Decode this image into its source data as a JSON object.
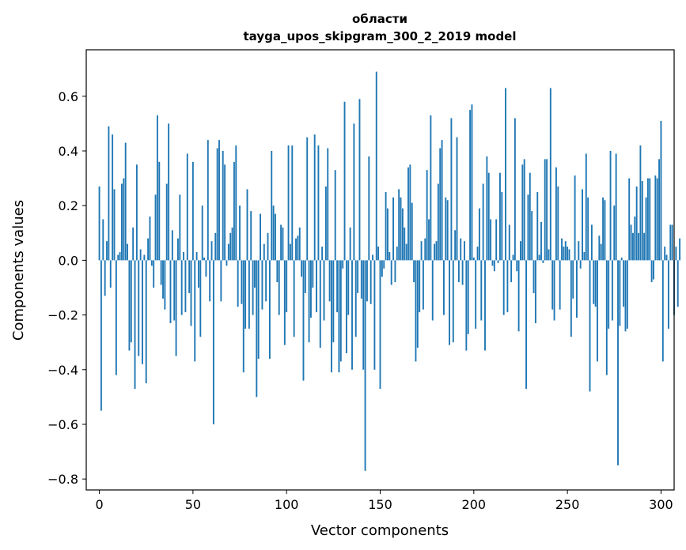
{
  "chart_data": {
    "type": "bar",
    "title_line1": "области",
    "title_line2": "tayga_upos_skipgram_300_2_2019 model",
    "xlabel": "Vector components",
    "ylabel": "Components values",
    "xlim": [
      -7,
      307
    ],
    "ylim": [
      -0.84,
      0.77
    ],
    "xticks": [
      0,
      50,
      100,
      150,
      200,
      250,
      300
    ],
    "xtick_labels": [
      "0",
      "50",
      "100",
      "150",
      "200",
      "250",
      "300"
    ],
    "yticks": [
      -0.8,
      -0.6,
      -0.4,
      -0.2,
      0.0,
      0.2,
      0.4,
      0.6
    ],
    "ytick_labels": [
      "−0.8",
      "−0.6",
      "−0.4",
      "−0.2",
      "0.0",
      "0.2",
      "0.4",
      "0.6"
    ],
    "bar_color": "#1f77b4",
    "grid": false,
    "values": [
      0.27,
      -0.55,
      0.15,
      -0.13,
      0.07,
      0.49,
      -0.1,
      0.46,
      0.26,
      -0.42,
      0.02,
      0.03,
      0.28,
      0.3,
      0.43,
      0.06,
      -0.33,
      -0.3,
      0.12,
      -0.47,
      0.35,
      -0.35,
      0.04,
      -0.38,
      0.02,
      -0.45,
      0.08,
      0.16,
      -0.02,
      -0.1,
      0.24,
      0.53,
      0.36,
      -0.09,
      -0.14,
      -0.18,
      0.28,
      0.5,
      -0.23,
      0.11,
      -0.22,
      -0.35,
      0.08,
      0.24,
      -0.2,
      0.03,
      -0.19,
      0.39,
      -0.12,
      -0.24,
      0.36,
      -0.37,
      0.03,
      -0.1,
      -0.28,
      0.2,
      0.01,
      -0.06,
      0.44,
      -0.15,
      0.07,
      -0.6,
      0.1,
      0.41,
      0.44,
      -0.15,
      0.4,
      0.35,
      -0.02,
      0.06,
      0.1,
      0.12,
      0.36,
      0.42,
      -0.17,
      0.2,
      -0.16,
      -0.41,
      -0.25,
      0.26,
      -0.25,
      0.18,
      -0.2,
      -0.1,
      -0.5,
      -0.36,
      0.17,
      -0.18,
      0.06,
      -0.15,
      0.1,
      -0.36,
      0.4,
      0.2,
      0.17,
      -0.08,
      -0.2,
      0.13,
      0.12,
      -0.31,
      -0.19,
      0.42,
      0.06,
      0.42,
      -0.28,
      0.08,
      0.09,
      0.12,
      -0.06,
      -0.44,
      -0.12,
      0.45,
      -0.3,
      -0.21,
      -0.1,
      0.46,
      -0.19,
      0.42,
      -0.32,
      0.05,
      -0.22,
      0.27,
      0.41,
      -0.15,
      -0.41,
      -0.3,
      0.33,
      -0.19,
      -0.41,
      -0.37,
      -0.03,
      0.58,
      -0.34,
      -0.2,
      0.12,
      -0.4,
      0.5,
      -0.28,
      -0.12,
      0.59,
      -0.14,
      -0.4,
      -0.77,
      -0.15,
      0.38,
      -0.16,
      0.02,
      -0.4,
      0.69,
      0.05,
      -0.47,
      -0.06,
      -0.03,
      0.25,
      0.19,
      0.03,
      -0.09,
      0.23,
      -0.08,
      0.05,
      0.26,
      0.23,
      0.19,
      0.12,
      0.06,
      0.34,
      0.35,
      0.21,
      -0.08,
      -0.37,
      -0.32,
      -0.19,
      0.07,
      -0.18,
      0.08,
      0.33,
      0.15,
      0.53,
      -0.22,
      0.06,
      0.07,
      0.28,
      0.41,
      0.44,
      -0.2,
      0.23,
      0.22,
      -0.31,
      0.52,
      -0.3,
      0.11,
      0.45,
      -0.08,
      0.08,
      -0.09,
      0.07,
      -0.33,
      -0.27,
      0.55,
      0.57,
      0.01,
      -0.25,
      0.05,
      0.19,
      -0.22,
      0.28,
      -0.33,
      0.38,
      0.32,
      0.15,
      -0.02,
      -0.04,
      0.15,
      -0.01,
      0.32,
      0.25,
      -0.2,
      0.63,
      -0.19,
      0.13,
      -0.08,
      0.02,
      0.52,
      -0.04,
      -0.26,
      0.07,
      0.35,
      0.37,
      -0.47,
      0.24,
      0.32,
      0.18,
      -0.12,
      -0.23,
      0.25,
      0.02,
      0.14,
      -0.01,
      0.37,
      0.37,
      0.04,
      0.63,
      -0.18,
      -0.22,
      0.34,
      0.27,
      -0.18,
      0.08,
      0.05,
      0.07,
      0.05,
      0.04,
      -0.28,
      -0.14,
      0.31,
      -0.21,
      0.07,
      -0.03,
      0.26,
      0.03,
      0.39,
      0.23,
      -0.48,
      0.13,
      -0.16,
      -0.17,
      -0.37,
      0.09,
      0.06,
      0.23,
      0.22,
      -0.42,
      -0.25,
      0.4,
      -0.22,
      0.2,
      0.39,
      -0.75,
      -0.24,
      0.01,
      -0.17,
      -0.26,
      -0.25,
      0.3,
      0.13,
      0.1,
      0.16,
      0.27,
      0.1,
      0.42,
      0.29,
      0.1,
      0.23,
      0.3,
      0.3,
      -0.08,
      -0.07,
      0.31,
      0.3,
      0.37,
      0.51,
      -0.37,
      0.05,
      0.02,
      -0.25,
      0.13,
      0.13,
      -0.2,
      0.05,
      -0.17,
      0.08
    ]
  }
}
